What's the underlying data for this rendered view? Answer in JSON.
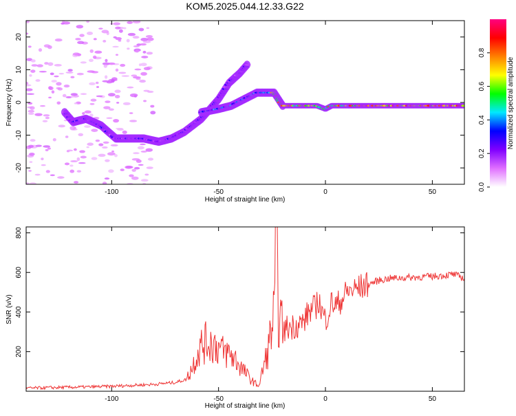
{
  "title": "KOM5.2025.044.12.33.G22",
  "chart_data": [
    {
      "type": "heatmap",
      "xlabel": "Height of straight line (km)",
      "ylabel": "Frequency (Hz)",
      "xlim": [
        -140,
        65
      ],
      "ylim": [
        -25,
        25
      ],
      "xticks": [
        -100,
        -50,
        0,
        50
      ],
      "yticks": [
        -20,
        -10,
        0,
        10,
        20
      ],
      "colorbar": {
        "label": "Normalized spectral amplitude",
        "range": [
          0,
          1
        ],
        "ticks": [
          0.0,
          0.2,
          0.4,
          0.6,
          0.8
        ],
        "tick_labels": [
          "0.0",
          "0.2",
          "0.4",
          "0.6",
          "0.8"
        ],
        "colors": [
          "#ffffff",
          "#e070ff",
          "#8000ff",
          "#0000ff",
          "#00e8ff",
          "#00ff00",
          "#ffff00",
          "#ff8000",
          "#ff0000",
          "#ff0080"
        ]
      },
      "traces": [
        {
          "points": [
            [
              -122,
              -3
            ],
            [
              -118,
              -6
            ],
            [
              -112,
              -5
            ],
            [
              -105,
              -7
            ],
            [
              -98,
              -11
            ],
            [
              -90,
              -11
            ],
            [
              -85,
              -11
            ],
            [
              -78,
              -12
            ],
            [
              -72,
              -11
            ],
            [
              -66,
              -9
            ],
            [
              -62,
              -7
            ],
            [
              -58,
              -5
            ],
            [
              -54,
              -2
            ],
            [
              -50,
              1
            ],
            [
              -45,
              6
            ],
            [
              -40,
              9
            ],
            [
              -36,
              12
            ]
          ],
          "amplitude": 0.18
        },
        {
          "points": [
            [
              -58,
              -3
            ],
            [
              -50,
              -2
            ],
            [
              -44,
              -1
            ],
            [
              -38,
              1
            ],
            [
              -32,
              3
            ],
            [
              -28,
              3
            ],
            [
              -24,
              3
            ],
            [
              -22,
              1
            ],
            [
              -20,
              -1
            ],
            [
              -15,
              -1
            ],
            [
              -8,
              -1
            ],
            [
              -4,
              -1
            ],
            [
              0,
              -2
            ],
            [
              3,
              -1
            ],
            [
              8,
              -1
            ],
            [
              15,
              -1
            ],
            [
              25,
              -1
            ],
            [
              40,
              -1
            ],
            [
              55,
              -1
            ],
            [
              65,
              -1
            ]
          ],
          "amplitude": 0.75
        }
      ]
    },
    {
      "type": "line",
      "xlabel": "Height of straight line (km)",
      "ylabel": "SNR (v/v)",
      "xlim": [
        -140,
        65
      ],
      "ylim": [
        0,
        830
      ],
      "xticks": [
        -100,
        -50,
        0,
        50
      ],
      "yticks": [
        200,
        400,
        600,
        800
      ],
      "color": "#ee3333",
      "x": [
        -140,
        -130,
        -120,
        -110,
        -100,
        -90,
        -80,
        -70,
        -65,
        -62,
        -60,
        -58,
        -55,
        -52,
        -50,
        -48,
        -45,
        -42,
        -40,
        -38,
        -35,
        -33,
        -31,
        -29,
        -27,
        -25,
        -24,
        -23,
        -22,
        -21,
        -20,
        -18,
        -15,
        -12,
        -10,
        -8,
        -5,
        -3,
        -2,
        0,
        3,
        5,
        8,
        10,
        15,
        20,
        25,
        30,
        40,
        50,
        60,
        65
      ],
      "values": [
        15,
        18,
        20,
        22,
        25,
        30,
        35,
        45,
        60,
        130,
        190,
        230,
        250,
        240,
        220,
        200,
        190,
        160,
        130,
        100,
        60,
        40,
        30,
        120,
        200,
        330,
        380,
        830,
        390,
        360,
        300,
        320,
        330,
        340,
        350,
        400,
        420,
        460,
        410,
        360,
        450,
        430,
        470,
        500,
        520,
        540,
        560,
        570,
        575,
        580,
        590,
        570
      ]
    }
  ]
}
